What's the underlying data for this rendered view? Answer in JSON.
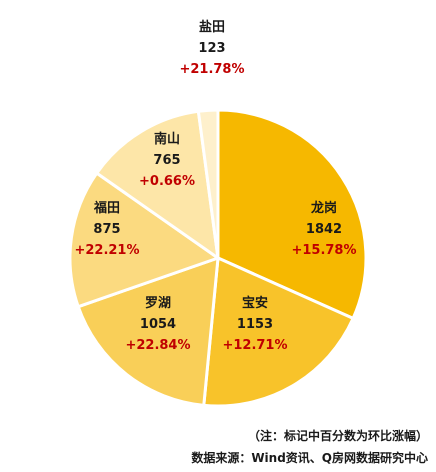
{
  "chart_data": {
    "type": "pie",
    "slices": [
      {
        "name": "龙岗",
        "value": 1842,
        "change": "+15.78%",
        "color": "#f6b800"
      },
      {
        "name": "宝安",
        "value": 1153,
        "change": "+12.71%",
        "color": "#f8c32a"
      },
      {
        "name": "罗湖",
        "value": 1054,
        "change": "+22.84%",
        "color": "#f9cf58"
      },
      {
        "name": "福田",
        "value": 875,
        "change": "+22.21%",
        "color": "#fbda80"
      },
      {
        "name": "南山",
        "value": 765,
        "change": "+0.66%",
        "color": "#fde6a8"
      },
      {
        "name": "盐田",
        "value": 123,
        "change": "+21.78%",
        "color": "#fef0cc"
      }
    ],
    "start_angle_deg": 0,
    "direction": "clockwise"
  },
  "notes": {
    "annotation": "（注：标记中百分数为环比涨幅）",
    "source": "数据来源：Wind资讯、Q房网数据研究中心"
  }
}
